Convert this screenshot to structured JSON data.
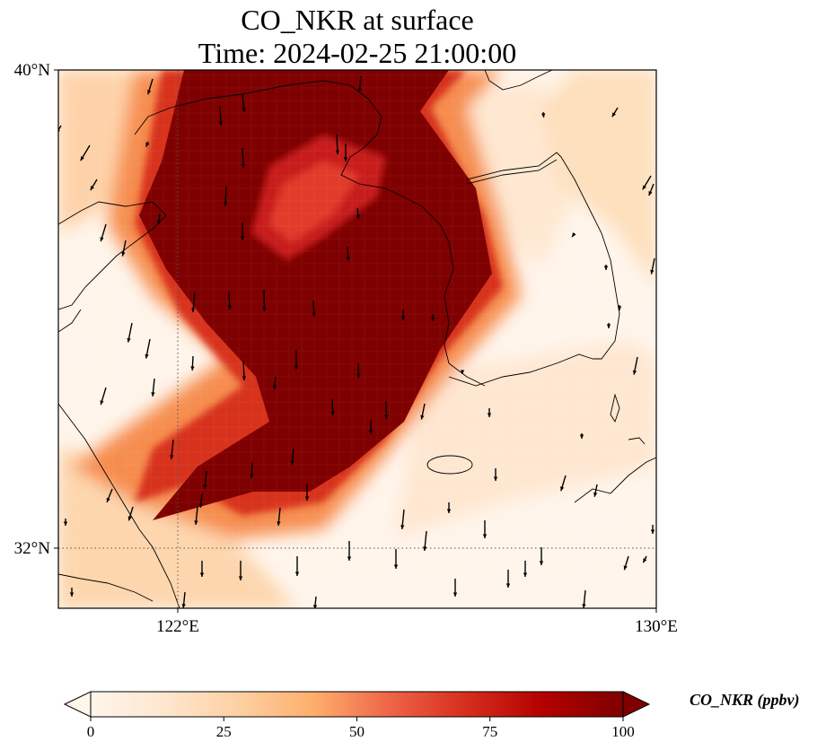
{
  "title": {
    "line1": "CO_NKR at surface",
    "line2": "Time: 2024-02-25 21:00:00"
  },
  "map": {
    "lon_range": [
      120,
      130
    ],
    "lat_range": [
      31,
      40
    ],
    "lat_ticks": [
      {
        "value": 40,
        "label": "40°N"
      },
      {
        "value": 32,
        "label": "32°N"
      }
    ],
    "lon_ticks": [
      {
        "value": 122,
        "label": "122°E"
      },
      {
        "value": 130,
        "label": "130°E"
      }
    ],
    "gridlines": "dotted",
    "wind_vectors": "black arrows, predominantly southward"
  },
  "colorbar": {
    "label": "CO_NKR (ppbv)",
    "min": 0,
    "max": 100,
    "ticks": [
      {
        "value": 0,
        "label": "0"
      },
      {
        "value": 25,
        "label": "25"
      },
      {
        "value": 50,
        "label": "50"
      },
      {
        "value": 75,
        "label": "75"
      },
      {
        "value": 100,
        "label": "100"
      }
    ],
    "colormap": [
      "#fff5eb",
      "#fee6ce",
      "#fdd0a2",
      "#fdae6b",
      "#f16913",
      "#d94801",
      "#b30000",
      "#7f0000"
    ],
    "extend": "both"
  }
}
